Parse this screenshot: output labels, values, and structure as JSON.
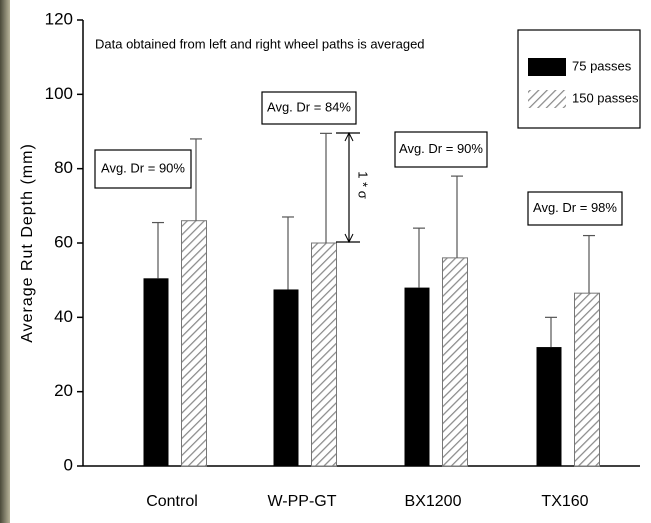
{
  "chart_data": {
    "type": "bar",
    "y_label": "Average Rut Depth (mm)",
    "categories": [
      "Control",
      "W-PP-GT",
      "BX1200",
      "TX160"
    ],
    "series": [
      {
        "name": "75 passes",
        "color": "#000000",
        "values": [
          50.5,
          47.5,
          48,
          32
        ],
        "errors": [
          15,
          19.5,
          16,
          8
        ]
      },
      {
        "name": "150 passes",
        "color": "#8a8a8a",
        "hatched": true,
        "values": [
          66,
          60,
          56,
          46.5
        ],
        "errors": [
          22,
          29.5,
          22,
          15.5
        ]
      }
    ],
    "ylim": [
      0,
      120
    ],
    "yticks": [
      0,
      20,
      40,
      60,
      80,
      100,
      120
    ],
    "note": "Data obtained from left and right wheel paths is averaged",
    "annotations": [
      "Avg. Dr = 90%",
      "Avg. Dr = 84%",
      "Avg. Dr = 90%",
      "Avg. Dr = 98%"
    ],
    "sigma_label": "1 * σ",
    "legend": "upper right"
  }
}
